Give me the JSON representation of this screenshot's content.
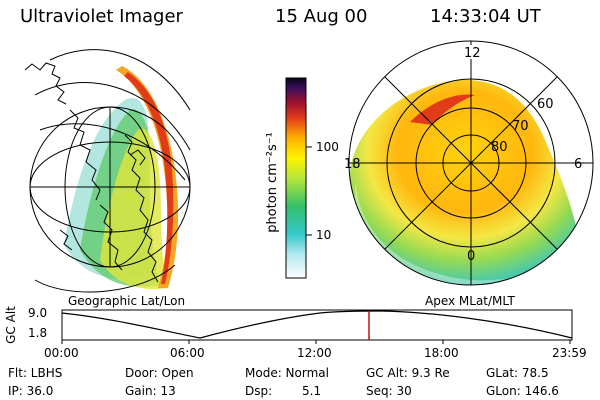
{
  "header": {
    "instrument": "Ultraviolet Imager",
    "date": "15 Aug 00",
    "time": "14:33:04 UT"
  },
  "left_panel": {
    "caption": "Geographic Lat/Lon"
  },
  "colorbar": {
    "label": "photon cm⁻²s⁻¹",
    "ticks": [
      "100",
      "10"
    ]
  },
  "right_panel": {
    "caption": "Apex MLat/MLT",
    "mlt_labels": {
      "top": "12",
      "left": "18",
      "right": "6",
      "bottom": "0"
    },
    "lat_labels": [
      "60",
      "70",
      "80"
    ]
  },
  "altitude_plot": {
    "ylabel": "GC Alt",
    "yticks": [
      "9.0",
      "1.8"
    ],
    "xticks": [
      "00:00",
      "06:00",
      "12:00",
      "18:00",
      "23:59"
    ],
    "series_color": "#000000",
    "marker_color": "#cc0000"
  },
  "status": {
    "filter": "Flt: LBHS",
    "ip": "IP: 36.0",
    "door": "Door: Open",
    "gain": "Gain: 13",
    "mode": "Mode: Normal",
    "dsp_label": "Dsp:",
    "dsp_value": "5.1",
    "gc_alt": "GC Alt: 9.3 Re",
    "seq": "Seq: 30",
    "glat": "GLat:  78.5",
    "glon": "GLon: 146.6"
  }
}
